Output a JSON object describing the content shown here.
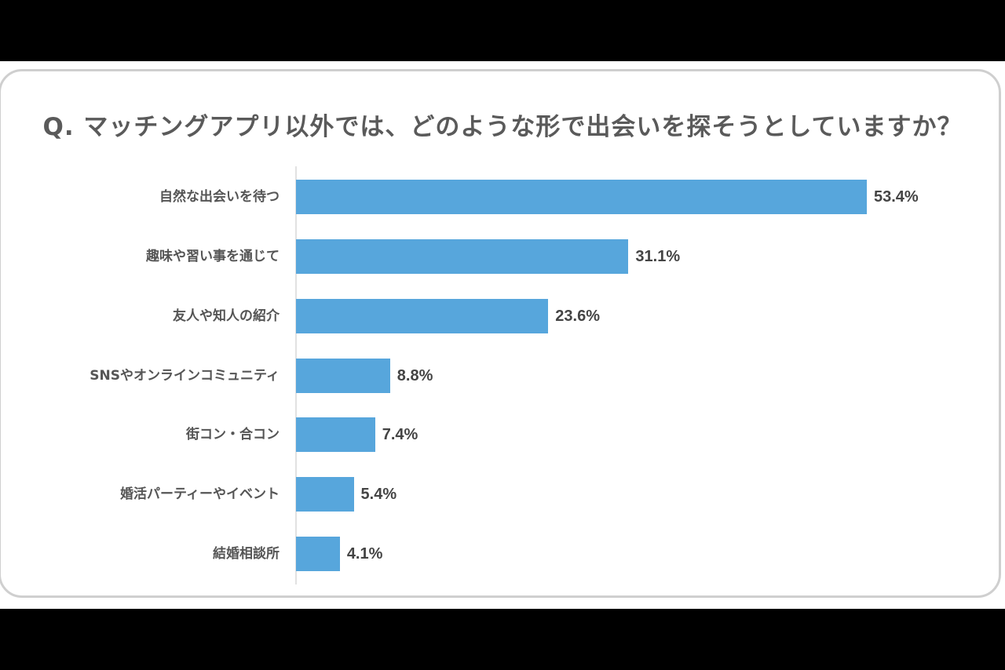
{
  "title": "Q. マッチングアプリ以外では、どのような形で出会いを探そうとしていますか？",
  "colors": {
    "bar": "#57a6dc",
    "text": "#555555",
    "border": "#cfcfcf",
    "background_band": "#000000"
  },
  "chart_data": {
    "type": "bar",
    "orientation": "horizontal",
    "title": "Q. マッチングアプリ以外では、どのような形で出会いを探そうとしていますか？",
    "xlabel": "",
    "ylabel": "",
    "unit": "%",
    "grid": false,
    "legend": null,
    "categories": [
      "自然な出会いを待つ",
      "趣味や習い事を通じて",
      "友人や知人の紹介",
      "SNSやオンラインコミュニティ",
      "街コン・合コン",
      "婚活パーティーやイベント",
      "結婚相談所"
    ],
    "values": [
      53.4,
      31.1,
      23.6,
      8.8,
      7.4,
      5.4,
      4.1
    ],
    "value_labels": [
      "53.4%",
      "31.1%",
      "23.6%",
      "8.8%",
      "7.4%",
      "5.4%",
      "4.1%"
    ]
  }
}
